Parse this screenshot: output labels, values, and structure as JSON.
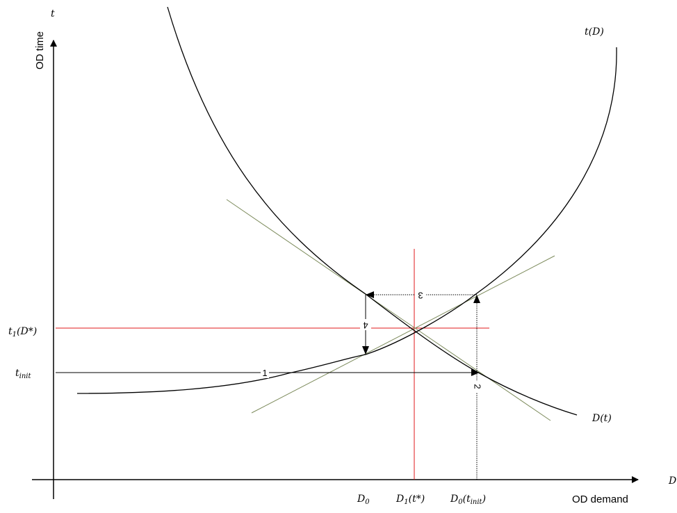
{
  "axes": {
    "y_symbol": "t",
    "y_title": "OD time",
    "x_symbol": "D",
    "x_title": "OD demand"
  },
  "curves": {
    "supply": "t(D)",
    "demand": "D(t)"
  },
  "y_marks": {
    "t1": {
      "main": "t",
      "sub": "1",
      "rest": "(D*)"
    },
    "tinit": {
      "main": "t",
      "sub": "init"
    }
  },
  "x_marks": {
    "d0": {
      "main": "D",
      "sub": "0"
    },
    "d1": {
      "main": "D",
      "sub": "1",
      "rest": "(t*)"
    },
    "d0tinit": {
      "main": "D",
      "sub": "0",
      "paren": "(t",
      "sub2": "init",
      "close": ")"
    }
  },
  "steps": [
    "1",
    "2",
    "3",
    "4"
  ],
  "colors": {
    "curve": "#000000",
    "tangent": "#7d8b5c",
    "equilibrium": "#e0191b",
    "guide": "#000000"
  }
}
